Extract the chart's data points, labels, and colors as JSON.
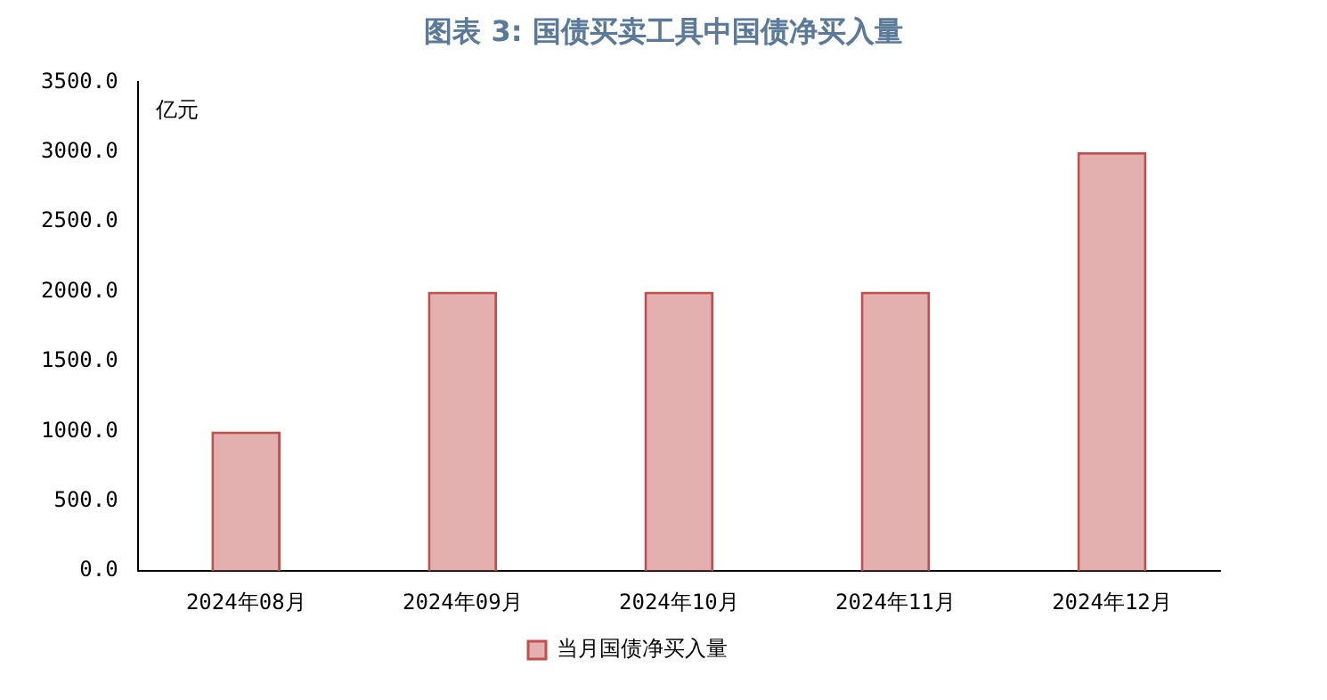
{
  "chart_data": {
    "type": "bar",
    "title": "图表 3:   国债买卖工具中国债净买入量",
    "ylabel": "亿元",
    "categories": [
      "2024年08月",
      "2024年09月",
      "2024年10月",
      "2024年11月",
      "2024年12月"
    ],
    "series": [
      {
        "name": "当月国债净买入量",
        "color": "#c0504d",
        "values": [
          1000,
          2000,
          2000,
          2000,
          3000
        ]
      }
    ],
    "ylim": [
      0,
      3500
    ],
    "yticks": [
      {
        "value": 0,
        "label": "0.0"
      },
      {
        "value": 500,
        "label": "500.0"
      },
      {
        "value": 1000,
        "label": "1000.0"
      },
      {
        "value": 1500,
        "label": "1500.0"
      },
      {
        "value": 2000,
        "label": "2000.0"
      },
      {
        "value": 2500,
        "label": "2500.0"
      },
      {
        "value": 3000,
        "label": "3000.0"
      },
      {
        "value": 3500,
        "label": "3500.0"
      }
    ],
    "grid": false,
    "legend": "bottom"
  }
}
